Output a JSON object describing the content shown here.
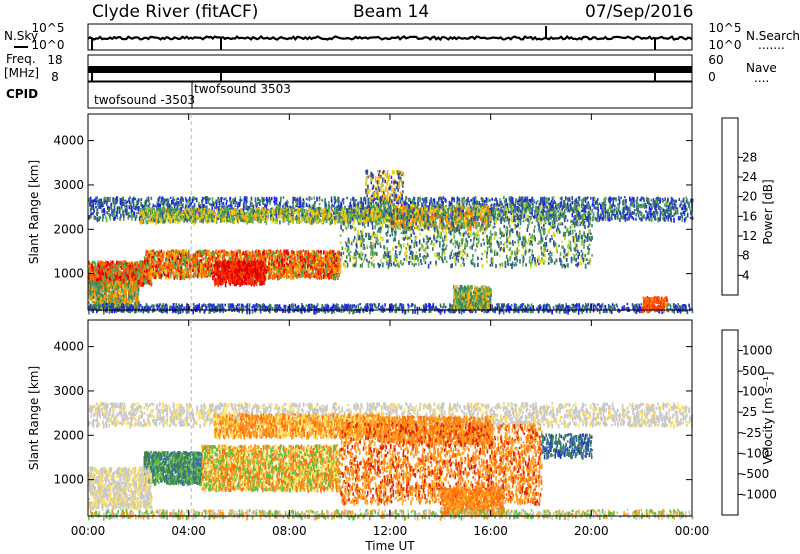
{
  "header": {
    "station": "Clyde River (fitACF)",
    "beam": "Beam 14",
    "date": "07/Sep/2016"
  },
  "strip_panels": {
    "nsky": {
      "left_label": "N.Sky",
      "right_label": "N.Search",
      "right_dots": ".......",
      "ticks_left": [
        "10^5",
        "10^0"
      ],
      "ticks_right": [
        "10^5",
        "10^0"
      ]
    },
    "freq": {
      "left_label_1": "Freq.",
      "left_label_2": "[MHz]",
      "right_label": "Nave",
      "right_dots": "....",
      "ticks_left": [
        "18",
        "8"
      ],
      "ticks_right": [
        "60",
        "0"
      ]
    },
    "cpid": {
      "label": "CPID",
      "entries": [
        "twofsound -3503",
        "twofsound 3503"
      ]
    }
  },
  "chart_data": [
    {
      "type": "heatmap",
      "title": "",
      "ylabel": "Slant Range [km]",
      "xlabel": "",
      "xlim_hours": [
        0,
        24
      ],
      "ylim": [
        180,
        4600
      ],
      "y_ticks": [
        "1000",
        "2000",
        "3000",
        "4000"
      ],
      "colorbar": {
        "label": "Power [dB]",
        "ticks": [
          "4",
          "8",
          "12",
          "16",
          "20",
          "24",
          "28"
        ],
        "colors": [
          "#1a1aff",
          "#2c4aa0",
          "#3a8060",
          "#5aaa50",
          "#d8d820",
          "#ffb000",
          "#ff7a00",
          "#ff3b00",
          "#e00000"
        ]
      }
    },
    {
      "type": "heatmap",
      "title": "",
      "ylabel": "Slant Range [km]",
      "xlabel": "Time UT",
      "xlim_hours": [
        0,
        24
      ],
      "ylim": [
        180,
        4600
      ],
      "x_ticks": [
        "00:00",
        "04:00",
        "08:00",
        "12:00",
        "16:00",
        "20:00",
        "00:00"
      ],
      "y_ticks": [
        "1000",
        "2000",
        "3000",
        "4000"
      ],
      "colorbar": {
        "label": "Velocity [m s⁻¹]",
        "ticks": [
          "1000",
          "500",
          "100",
          "25",
          "-25",
          "-100",
          "-500",
          "-1000"
        ],
        "colors": [
          "#2040b0",
          "#3a70a0",
          "#408050",
          "#60c040",
          "#c8c8c8",
          "#ffe060",
          "#ffa020",
          "#ff7010",
          "#e02000"
        ]
      }
    }
  ]
}
